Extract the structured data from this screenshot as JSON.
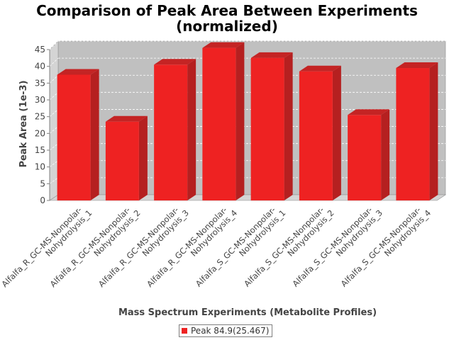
{
  "chart_data": {
    "type": "bar",
    "title_line1": "Comparison of Peak Area Between Experiments",
    "title_line2": "(normalized)",
    "xlabel": "Mass Spectrum Experiments (Metabolite Profiles)",
    "ylabel": "Peak Area (1e-3)",
    "ylim": [
      0,
      45
    ],
    "yticks": [
      0,
      5,
      10,
      15,
      20,
      25,
      30,
      35,
      40,
      45
    ],
    "grid": true,
    "legend_position": "bottom",
    "categories": [
      [
        "Alfalfa_R_GC-MS-Nonpolar-",
        "Nohydrolysis_1"
      ],
      [
        "Alfalfa_R_GC-MS-Nonpolar-",
        "Nohydrolysis_2"
      ],
      [
        "Alfalfa_R_GC-MS-Nonpolar-",
        "Nohydrolysis_3"
      ],
      [
        "Alfalfa_R_GC-MS-Nonpolar-",
        "Nohydrolysis_4"
      ],
      [
        "Alfalfa_S_GC-MS-Nonpolar-",
        "Nohydrolysis_1"
      ],
      [
        "Alfalfa_S_GC-MS-Nonpolar-",
        "Nohydrolysis_2"
      ],
      [
        "Alfalfa_S_GC-MS-Nonpolar-",
        "Nohydrolysis_3"
      ],
      [
        "Alfalfa_S_GC-MS-Nonpolar-",
        "Nohydrolysis_4"
      ]
    ],
    "series": [
      {
        "name": "Peak 84.9(25.467)",
        "color": "#ee2222",
        "values": [
          37.5,
          23.5,
          40.5,
          45.5,
          42.5,
          38.5,
          25.5,
          39.5
        ]
      }
    ]
  }
}
